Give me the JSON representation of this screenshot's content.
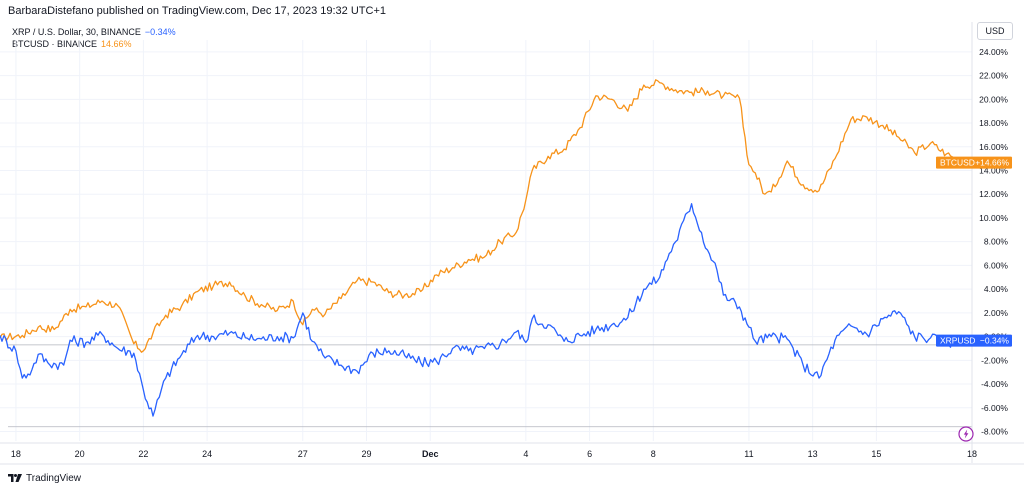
{
  "header": {
    "published_text": "BarbaraDistefano published on TradingView.com, Dec 17, 2023 19:32 UTC+1"
  },
  "legend": {
    "rows": [
      {
        "name": "XRP / U.S. Dollar, 30, BINANCE",
        "value": "−0.34%",
        "color": "#2962ff"
      },
      {
        "name": "BTCUSD · BINANCE",
        "value": "14.66%",
        "color": "#f7931a"
      }
    ]
  },
  "currency_button": "USD",
  "footer": {
    "brand": "TradingView"
  },
  "chart_data": {
    "type": "line",
    "xlabel": "",
    "ylabel": "",
    "ylim": [
      -8.8,
      25
    ],
    "y_ticks": [
      "24.00%",
      "22.00%",
      "20.00%",
      "18.00%",
      "16.00%",
      "14.00%",
      "12.00%",
      "10.00%",
      "8.00%",
      "6.00%",
      "4.00%",
      "2.00%",
      "0.00%",
      "-2.00%",
      "-4.00%",
      "-6.00%",
      "-8.00%"
    ],
    "y_tick_values": [
      24,
      22,
      20,
      18,
      16,
      14,
      12,
      10,
      8,
      6,
      4,
      2,
      0,
      -2,
      -4,
      -6,
      -8
    ],
    "x_ticks": [
      "18",
      "20",
      "22",
      "24",
      "27",
      "29",
      "Dec",
      "4",
      "6",
      "8",
      "11",
      "13",
      "15",
      "18"
    ],
    "x_tick_values": [
      -0.7,
      1.3,
      3.3,
      5.3,
      8.3,
      10.3,
      12.3,
      15.3,
      17.3,
      19.3,
      22.3,
      24.3,
      26.3,
      29.3
    ],
    "xlim": [
      -1.2,
      29.3
    ],
    "x_unit": "days since Nov 17 2023 00:00 (x tick 'Dec' = Dec 1)",
    "grid": true,
    "series": [
      {
        "name": "BTCUSD",
        "color": "#f7931a",
        "last_label": "BTCUSD",
        "last_value_label": "+14.66%",
        "x": [
          -1.2,
          -0.5,
          0,
          0.5,
          1,
          1.5,
          2,
          2.5,
          3,
          3.3,
          3.6,
          4,
          4.5,
          5,
          5.5,
          6,
          6.5,
          7,
          7.5,
          8,
          8.3,
          8.6,
          9,
          9.5,
          10,
          10.5,
          11,
          11.5,
          12,
          12.5,
          13,
          13.5,
          14,
          14.5,
          15,
          15.3,
          15.5,
          16,
          16.5,
          17,
          17.5,
          18,
          18.5,
          19,
          19.5,
          20,
          20.5,
          21,
          21.5,
          22,
          22.3,
          22.5,
          22.8,
          23,
          23.5,
          24,
          24.5,
          25,
          25.5,
          26,
          26.5,
          27,
          27.5,
          28,
          28.5,
          29
        ],
        "y": [
          -0.1,
          0.1,
          0.8,
          0.6,
          2.3,
          2.5,
          3.0,
          2.6,
          -0.6,
          -1.2,
          0.3,
          1.8,
          2.6,
          3.8,
          4.3,
          4.6,
          3.4,
          2.7,
          2.2,
          3.0,
          1.0,
          2.3,
          1.9,
          3.2,
          4.7,
          4.6,
          3.7,
          3.5,
          3.8,
          5.2,
          5.8,
          6.5,
          6.7,
          8.0,
          8.8,
          11.5,
          14.0,
          15.2,
          15.8,
          17.6,
          20.3,
          20.0,
          19.0,
          21.2,
          21.4,
          20.8,
          20.6,
          20.7,
          20.3,
          20.1,
          14.5,
          13.8,
          12.0,
          12.2,
          14.8,
          12.8,
          12.3,
          15.0,
          18.3,
          18.5,
          17.8,
          16.8,
          15.5,
          16.3,
          15.4,
          14.66
        ]
      },
      {
        "name": "XRPUSD",
        "color": "#2962ff",
        "last_label": "XRPUSD",
        "last_value_label": "−0.34%",
        "x": [
          -1.2,
          -0.7,
          -0.5,
          -0.2,
          0,
          0.3,
          0.8,
          1,
          1.5,
          2,
          2.5,
          3,
          3.3,
          3.6,
          4,
          4.5,
          5,
          5.5,
          6,
          6.5,
          7,
          7.5,
          8,
          8.3,
          8.6,
          9,
          9.5,
          10,
          10.5,
          11,
          11.5,
          12,
          12.5,
          13,
          13.5,
          14,
          14.5,
          15,
          15.3,
          15.5,
          16,
          16.5,
          17,
          17.5,
          18,
          18.5,
          19,
          19.5,
          19.8,
          20,
          20.5,
          21,
          21.3,
          21.5,
          22,
          22.3,
          22.5,
          23,
          23.5,
          24,
          24.5,
          25,
          25.5,
          26,
          26.5,
          27,
          27.5,
          28,
          28.5,
          29
        ],
        "y": [
          0.1,
          -1.2,
          -3.5,
          -2.8,
          -1.5,
          -2.2,
          -2.4,
          -0.3,
          -0.5,
          0.2,
          -1.0,
          -1.4,
          -4.5,
          -6.7,
          -3.5,
          -1.5,
          0.1,
          0.0,
          0.3,
          -0.1,
          -0.2,
          0.0,
          -0.1,
          2.0,
          -0.4,
          -1.8,
          -2.4,
          -2.9,
          -1.4,
          -1.2,
          -1.6,
          -2.2,
          -2.1,
          -1.0,
          -1.2,
          -1.0,
          -0.6,
          0.4,
          -0.5,
          1.5,
          1.0,
          -0.4,
          0.1,
          0.6,
          1.0,
          1.6,
          4.0,
          5.0,
          7.0,
          8.0,
          11.2,
          7.3,
          5.6,
          3.5,
          2.5,
          0.8,
          -0.4,
          0.0,
          -0.2,
          -2.4,
          -3.5,
          -0.3,
          0.9,
          0.2,
          1.5,
          2.1,
          0.0,
          -0.1,
          -0.5,
          -0.34
        ]
      }
    ]
  }
}
